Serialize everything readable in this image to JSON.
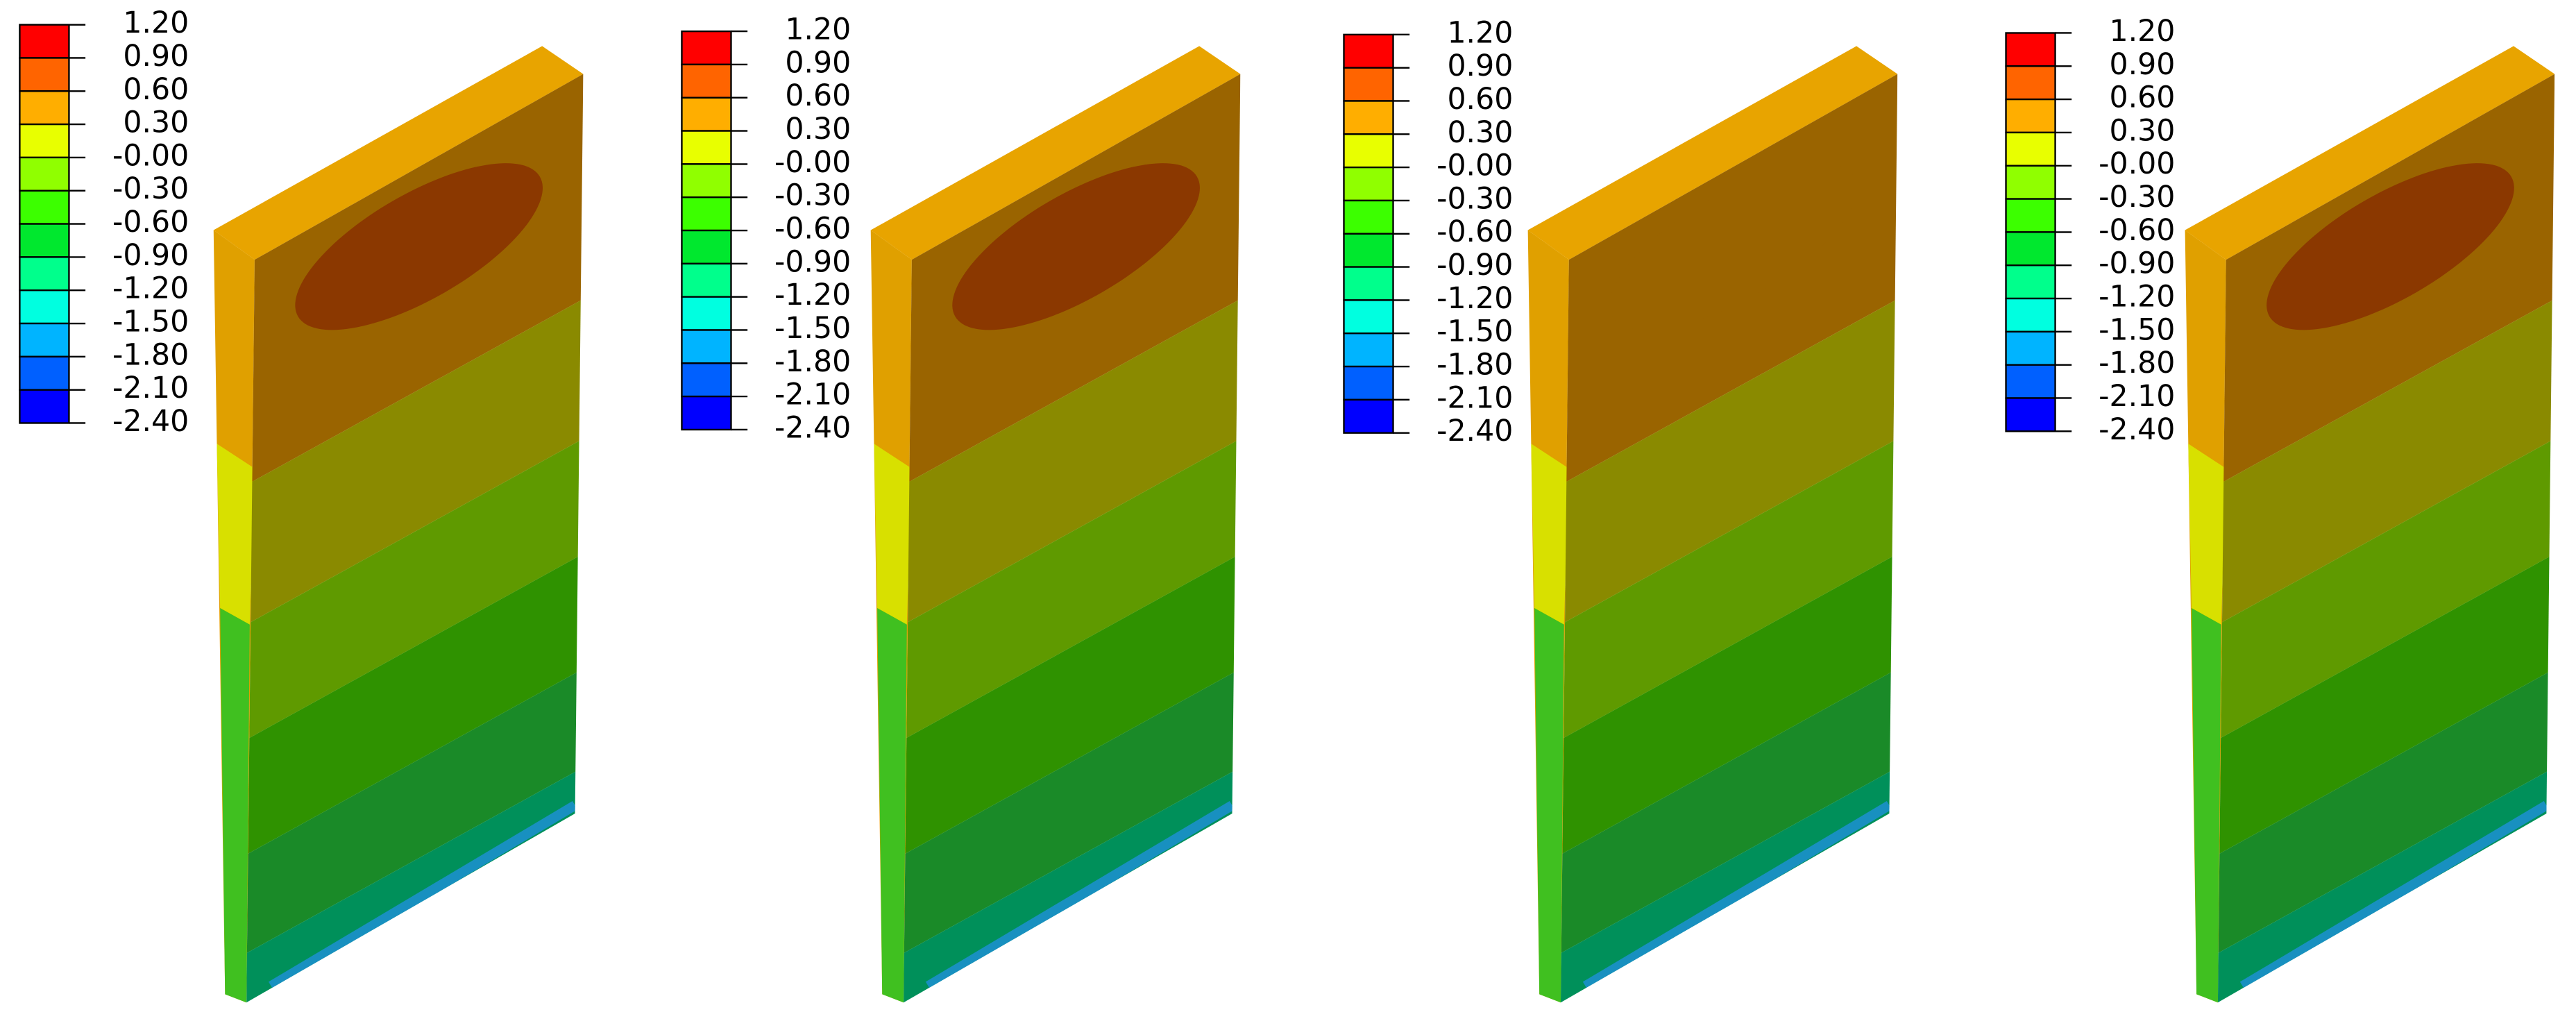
{
  "legend_colors": [
    "#ff0000",
    "#ff6400",
    "#ffae00",
    "#e8ff00",
    "#90ff00",
    "#3cff00",
    "#00e82e",
    "#00ff8c",
    "#00ffe0",
    "#00b4ff",
    "#0060ff",
    "#0000ff"
  ],
  "panels": [
    {
      "legend": [
        "1.20",
        "0.90",
        "0.60",
        "0.30",
        "-0.00",
        "-0.30",
        "-0.60",
        "-0.90",
        "-1.20",
        "-1.50",
        "-1.80",
        "-2.10",
        "-2.40"
      ]
    },
    {
      "legend": [
        "1.20",
        "0.90",
        "0.60",
        "0.30",
        "-0.00",
        "-0.30",
        "-0.60",
        "-0.90",
        "-1.20",
        "-1.50",
        "-1.80",
        "-2.10",
        "-2.40"
      ]
    },
    {
      "legend": [
        "1.20",
        "0.90",
        "0.60",
        "0.30",
        "-0.00",
        "-0.30",
        "-0.60",
        "-0.90",
        "-1.20",
        "-1.50",
        "-1.80",
        "-2.10",
        "-2.40"
      ]
    },
    {
      "legend": [
        "1.20",
        "0.90",
        "0.60",
        "0.30",
        "-0.00",
        "-0.30",
        "-0.60",
        "-0.90",
        "-1.20",
        "-1.50",
        "-1.80",
        "-2.10",
        "-2.40"
      ]
    }
  ]
}
